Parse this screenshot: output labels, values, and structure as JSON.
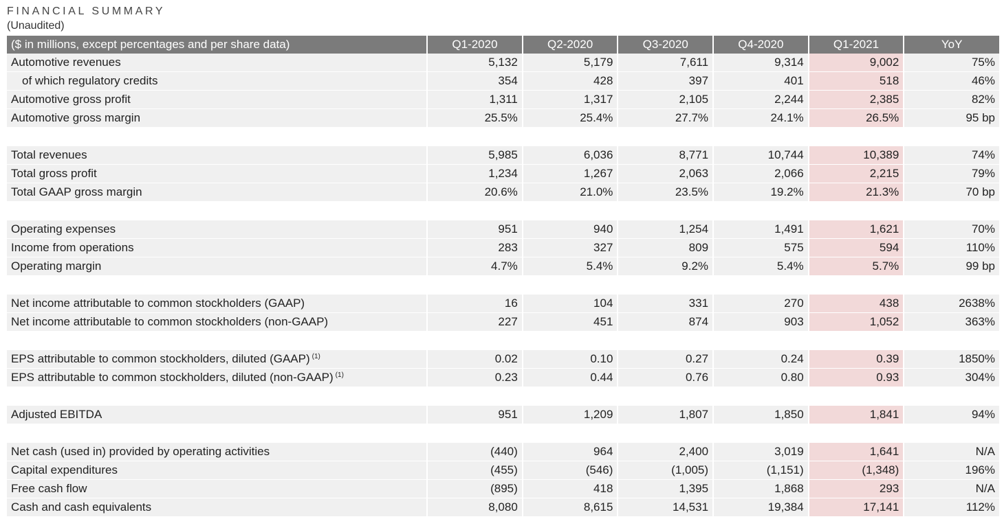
{
  "header": {
    "title": "FINANCIAL SUMMARY",
    "subtitle": "(Unaudited)"
  },
  "table": {
    "columns": [
      "($ in millions, except percentages and per share data)",
      "Q1-2020",
      "Q2-2020",
      "Q3-2020",
      "Q4-2020",
      "Q1-2021",
      "YoY"
    ],
    "highlight_color": "#f2d9d9",
    "header_color": "#7b7b7b",
    "groups": [
      {
        "rows": [
          {
            "label": "Automotive revenues",
            "values": [
              "5,132",
              "5,179",
              "7,611",
              "9,314",
              "9,002",
              "75%"
            ]
          },
          {
            "label": "of which regulatory credits",
            "values": [
              "354",
              "428",
              "397",
              "401",
              "518",
              "46%"
            ]
          },
          {
            "label": "Automotive gross profit",
            "values": [
              "1,311",
              "1,317",
              "2,105",
              "2,244",
              "2,385",
              "82%"
            ]
          },
          {
            "label": "Automotive gross margin",
            "values": [
              "25.5%",
              "25.4%",
              "27.7%",
              "24.1%",
              "26.5%",
              "95 bp"
            ]
          }
        ]
      },
      {
        "rows": [
          {
            "label": "Total revenues",
            "values": [
              "5,985",
              "6,036",
              "8,771",
              "10,744",
              "10,389",
              "74%"
            ]
          },
          {
            "label": "Total gross profit",
            "values": [
              "1,234",
              "1,267",
              "2,063",
              "2,066",
              "2,215",
              "79%"
            ]
          },
          {
            "label": "Total GAAP gross margin",
            "values": [
              "20.6%",
              "21.0%",
              "23.5%",
              "19.2%",
              "21.3%",
              "70 bp"
            ]
          }
        ]
      },
      {
        "rows": [
          {
            "label": "Operating expenses",
            "values": [
              "951",
              "940",
              "1,254",
              "1,491",
              "1,621",
              "70%"
            ]
          },
          {
            "label": "Income from operations",
            "values": [
              "283",
              "327",
              "809",
              "575",
              "594",
              "110%"
            ]
          },
          {
            "label": "Operating margin",
            "values": [
              "4.7%",
              "5.4%",
              "9.2%",
              "5.4%",
              "5.7%",
              "99 bp"
            ]
          }
        ]
      },
      {
        "rows": [
          {
            "label": "Net income attributable to common stockholders (GAAP)",
            "values": [
              "16",
              "104",
              "331",
              "270",
              "438",
              "2638%"
            ]
          },
          {
            "label": "Net income attributable to common stockholders (non-GAAP)",
            "values": [
              "227",
              "451",
              "874",
              "903",
              "1,052",
              "363%"
            ]
          }
        ]
      },
      {
        "rows": [
          {
            "label": "EPS attributable to common stockholders, diluted (GAAP)",
            "footnote": "(1)",
            "values": [
              "0.02",
              "0.10",
              "0.27",
              "0.24",
              "0.39",
              "1850%"
            ]
          },
          {
            "label": "EPS attributable to common stockholders, diluted (non-GAAP)",
            "footnote": "(1)",
            "values": [
              "0.23",
              "0.44",
              "0.76",
              "0.80",
              "0.93",
              "304%"
            ]
          }
        ]
      },
      {
        "rows": [
          {
            "label": "Adjusted EBITDA",
            "values": [
              "951",
              "1,209",
              "1,807",
              "1,850",
              "1,841",
              "94%"
            ]
          }
        ]
      },
      {
        "rows": [
          {
            "label": "Net cash (used in) provided by operating activities",
            "values": [
              "(440)",
              "964",
              "2,400",
              "3,019",
              "1,641",
              "N/A"
            ]
          },
          {
            "label": "Capital expenditures",
            "values": [
              "(455)",
              "(546)",
              "(1,005)",
              "(1,151)",
              "(1,348)",
              "196%"
            ]
          },
          {
            "label": "Free cash flow",
            "values": [
              "(895)",
              "418",
              "1,395",
              "1,868",
              "293",
              "N/A"
            ]
          },
          {
            "label": "Cash and cash equivalents",
            "values": [
              "8,080",
              "8,615",
              "14,531",
              "19,384",
              "17,141",
              "112%"
            ]
          }
        ]
      }
    ]
  }
}
